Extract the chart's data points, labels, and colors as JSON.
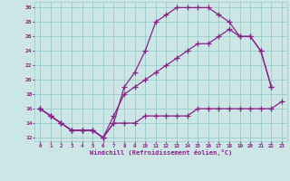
{
  "background_color": "#cce5e5",
  "grid_color": "#99cccc",
  "line_color": "#882288",
  "xlabel": "Windchill (Refroidissement éolien,°C)",
  "xlim": [
    -0.5,
    23.5
  ],
  "ylim": [
    11.5,
    30.8
  ],
  "yticks": [
    12,
    14,
    16,
    18,
    20,
    22,
    24,
    26,
    28,
    30
  ],
  "xticks": [
    0,
    1,
    2,
    3,
    4,
    5,
    6,
    7,
    8,
    9,
    10,
    11,
    12,
    13,
    14,
    15,
    16,
    17,
    18,
    19,
    20,
    21,
    22,
    23
  ],
  "curve1_x": [
    0,
    1,
    2,
    3,
    4,
    5,
    6,
    7,
    8,
    9,
    10,
    11,
    12,
    13,
    14,
    15,
    16,
    17,
    18,
    19,
    20,
    21,
    22
  ],
  "curve1_y": [
    16,
    15,
    14,
    13,
    13,
    13,
    12,
    14,
    19,
    21,
    24,
    28,
    29,
    30,
    30,
    30,
    30,
    29,
    28,
    26,
    26,
    24,
    19
  ],
  "curve2_x": [
    0,
    1,
    2,
    3,
    4,
    5,
    6,
    7,
    8,
    9,
    10,
    11,
    12,
    13,
    14,
    15,
    16,
    17,
    18,
    19,
    20,
    21,
    22
  ],
  "curve2_y": [
    16,
    15,
    14,
    13,
    13,
    13,
    12,
    15,
    18,
    19,
    20,
    21,
    22,
    23,
    24,
    25,
    25,
    26,
    27,
    26,
    26,
    24,
    19
  ],
  "curve3_x": [
    0,
    1,
    2,
    3,
    4,
    5,
    6,
    7,
    8,
    9,
    10,
    11,
    12,
    13,
    14,
    15,
    16,
    17,
    18,
    19,
    20,
    21,
    22,
    23
  ],
  "curve3_y": [
    16,
    15,
    14,
    13,
    13,
    13,
    12,
    14,
    14,
    14,
    15,
    15,
    15,
    15,
    15,
    16,
    16,
    16,
    16,
    16,
    16,
    16,
    16,
    17
  ]
}
